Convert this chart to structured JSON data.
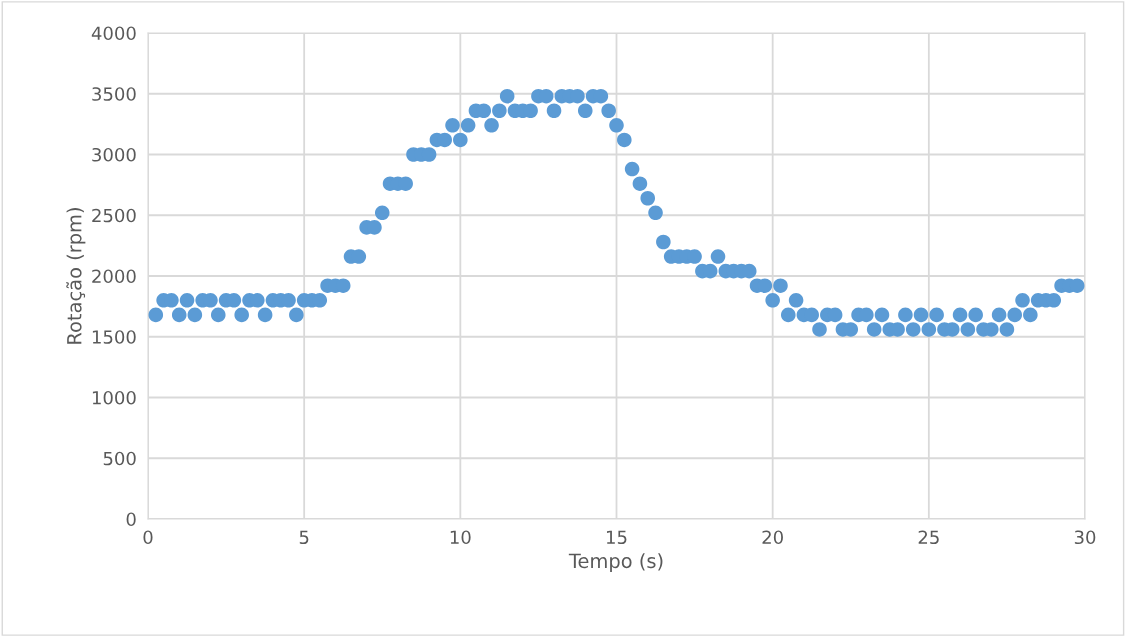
{
  "chart_data": {
    "type": "scatter",
    "xlabel": "Tempo (s)",
    "ylabel": "Rotação (rpm)",
    "x": [
      0.25,
      0.5,
      0.75,
      1.0,
      1.25,
      1.5,
      1.75,
      2.0,
      2.25,
      2.5,
      2.75,
      3.0,
      3.25,
      3.5,
      3.75,
      4.0,
      4.25,
      4.5,
      4.75,
      5.0,
      5.25,
      5.5,
      5.75,
      6.0,
      6.25,
      6.5,
      6.75,
      7.0,
      7.25,
      7.5,
      7.75,
      8.0,
      8.25,
      8.5,
      8.75,
      9.0,
      9.25,
      9.5,
      9.75,
      10.0,
      10.25,
      10.5,
      10.75,
      11.0,
      11.25,
      11.5,
      11.75,
      12.0,
      12.25,
      12.5,
      12.75,
      13.0,
      13.25,
      13.5,
      13.75,
      14.0,
      14.25,
      14.5,
      14.75,
      15.0,
      15.25,
      15.5,
      15.75,
      16.0,
      16.25,
      16.5,
      16.75,
      17.0,
      17.25,
      17.5,
      17.75,
      18.0,
      18.25,
      18.5,
      18.75,
      19.0,
      19.25,
      19.5,
      19.75,
      20.0,
      20.25,
      20.5,
      20.75,
      21.0,
      21.25,
      21.5,
      21.75,
      22.0,
      22.25,
      22.5,
      22.75,
      23.0,
      23.25,
      23.5,
      23.75,
      24.0,
      24.25,
      24.5,
      24.75,
      25.0,
      25.25,
      25.5,
      25.75,
      26.0,
      26.25,
      26.5,
      26.75,
      27.0,
      27.25,
      27.5,
      27.75,
      28.0,
      28.25,
      28.5,
      28.75,
      29.0,
      29.25,
      29.5,
      29.75
    ],
    "series": [
      {
        "color": "#5b9bd5",
        "values": [
          1680,
          1800,
          1800,
          1680,
          1800,
          1680,
          1800,
          1800,
          1680,
          1800,
          1800,
          1680,
          1800,
          1800,
          1680,
          1800,
          1800,
          1800,
          1680,
          1800,
          1800,
          1800,
          1920,
          1920,
          1920,
          2160,
          2160,
          2400,
          2400,
          2520,
          2760,
          2760,
          2760,
          3000,
          3000,
          3000,
          3120,
          3120,
          3240,
          3120,
          3240,
          3360,
          3360,
          3240,
          3360,
          3480,
          3360,
          3360,
          3360,
          3480,
          3480,
          3360,
          3480,
          3480,
          3480,
          3360,
          3480,
          3480,
          3360,
          3240,
          3120,
          2880,
          2760,
          2640,
          2520,
          2280,
          2160,
          2160,
          2160,
          2160,
          2040,
          2040,
          2160,
          2040,
          2040,
          2040,
          2040,
          1920,
          1920,
          1800,
          1920,
          1680,
          1800,
          1680,
          1680,
          1560,
          1680,
          1680,
          1560,
          1560,
          1680,
          1680,
          1560,
          1680,
          1560,
          1560,
          1680,
          1560,
          1680,
          1560,
          1680,
          1560,
          1560,
          1680,
          1560,
          1680,
          1560,
          1560,
          1680,
          1560,
          1680,
          1800,
          1680,
          1800,
          1800,
          1800,
          1920,
          1920,
          1920
        ]
      }
    ],
    "xlim": [
      0,
      30
    ],
    "xticks": [
      0,
      5,
      10,
      15,
      20,
      25,
      30
    ],
    "ylim": [
      0,
      4000
    ],
    "yticks": [
      0,
      500,
      1000,
      1500,
      2000,
      2500,
      3000,
      3500,
      4000
    ],
    "grid": true,
    "marker": "circle",
    "legend": false
  }
}
